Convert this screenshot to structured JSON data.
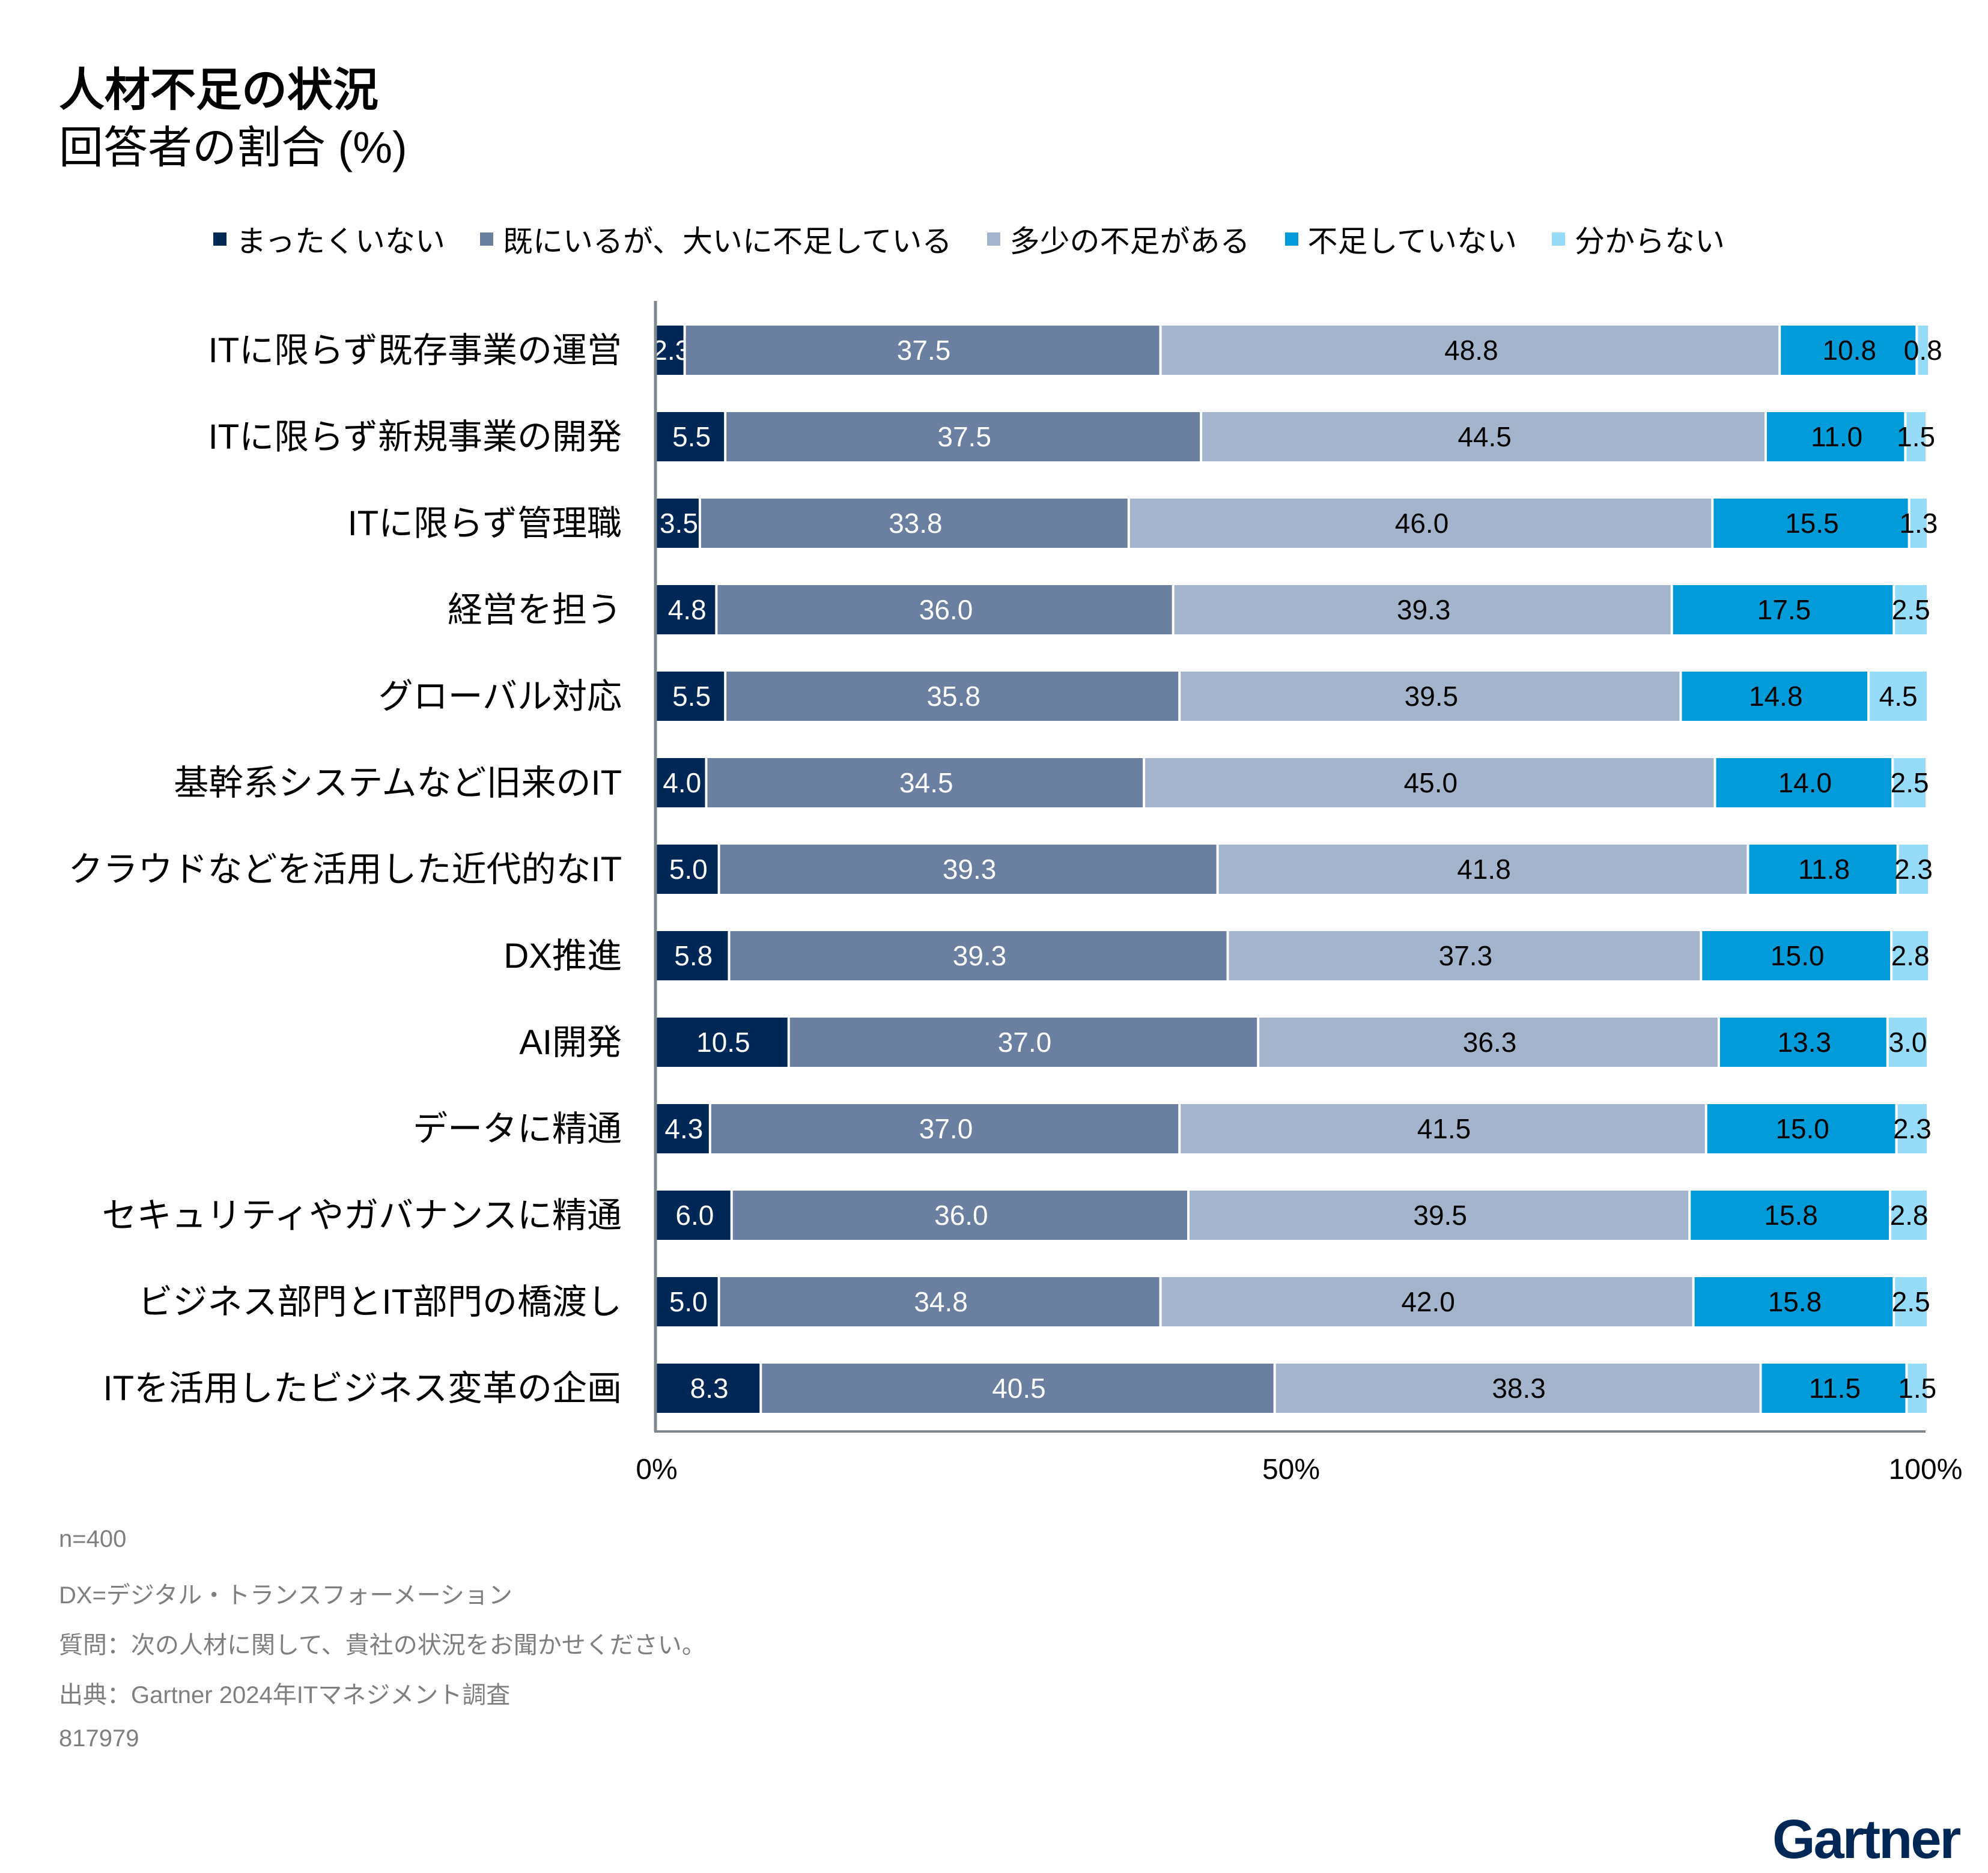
{
  "chart_data": {
    "type": "bar",
    "orientation": "horizontal",
    "stacked": true,
    "title": "人材不足の状況",
    "subtitle": "回答者の割合 (%)",
    "categories": [
      "ITに限らず既存事業の運営",
      "ITに限らず新規事業の開発",
      "ITに限らず管理職",
      "経営を担う",
      "グローバル対応",
      "基幹系システムなど旧来のIT",
      "クラウドなどを活用した近代的なIT",
      "DX推進",
      "AI開発",
      "データに精通",
      "セキュリティやガバナンスに精通",
      "ビジネス部門とIT部門の橋渡し",
      "ITを活用したビジネス変革の企画"
    ],
    "series": [
      {
        "name": "まったくいない",
        "color": "#002856",
        "values": [
          2.3,
          5.5,
          3.5,
          4.8,
          5.5,
          4.0,
          5.0,
          5.8,
          10.5,
          4.3,
          6.0,
          5.0,
          8.3
        ]
      },
      {
        "name": "既にいるが、大いに不足している",
        "color": "#6b7fa1",
        "values": [
          37.5,
          37.5,
          33.8,
          36.0,
          35.8,
          34.5,
          39.3,
          39.3,
          37.0,
          37.0,
          36.0,
          34.8,
          40.5
        ]
      },
      {
        "name": "多少の不足がある",
        "color": "#a3b4cc",
        "values": [
          48.8,
          44.5,
          46.0,
          39.3,
          39.5,
          45.0,
          41.8,
          37.3,
          36.3,
          41.5,
          39.5,
          42.0,
          38.3
        ]
      },
      {
        "name": "不足していない",
        "color": "#009bd8",
        "values": [
          10.8,
          11.0,
          15.5,
          17.5,
          14.8,
          14.0,
          11.8,
          15.0,
          13.3,
          15.0,
          15.8,
          15.8,
          11.5
        ]
      },
      {
        "name": "分からない",
        "color": "#96dcf8",
        "values": [
          0.8,
          1.5,
          1.3,
          2.5,
          4.5,
          2.5,
          2.3,
          2.8,
          3.0,
          2.3,
          2.8,
          2.5,
          1.5
        ]
      }
    ],
    "xlim": [
      0,
      100
    ],
    "xticks": [
      "0%",
      "50%",
      "100%"
    ],
    "grid": false,
    "legend": "top"
  },
  "notes": [
    "n=400",
    "DX=デジタル・トランスフォーメーション",
    "質問：次の人材に関して、貴社の状況をお聞かせください。",
    "出典：Gartner 2024年ITマネジメント調査",
    "817979"
  ],
  "logo": "Gartner"
}
